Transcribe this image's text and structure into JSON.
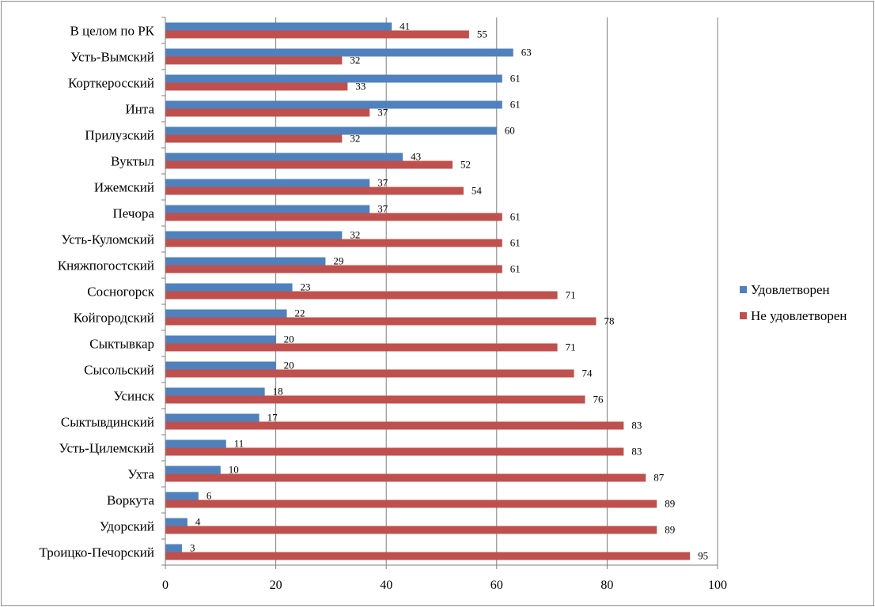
{
  "chart_data": {
    "type": "bar",
    "orientation": "horizontal",
    "categories": [
      "В целом по РК",
      "Усть-Вымский",
      "Корткеросский",
      "Инта",
      "Прилузский",
      "Вуктыл",
      "Ижемский",
      "Печора",
      "Усть-Куломский",
      "Княжпогостский",
      "Сосногорск",
      "Койгородский",
      "Сыктывкар",
      "Сысольский",
      "Усинск",
      "Сыктывдинский",
      "Усть-Цилемский",
      "Ухта",
      "Воркута",
      "Удорский",
      "Троицко-Печорский"
    ],
    "series": [
      {
        "name": "Удовлетворен",
        "color": "#4f81bd",
        "values": [
          41,
          63,
          61,
          61,
          60,
          43,
          37,
          37,
          32,
          29,
          23,
          22,
          20,
          20,
          18,
          17,
          11,
          10,
          6,
          4,
          3
        ]
      },
      {
        "name": "Не удовлетворен",
        "color": "#c0504d",
        "values": [
          55,
          32,
          33,
          37,
          32,
          52,
          54,
          61,
          61,
          61,
          71,
          78,
          71,
          74,
          76,
          83,
          83,
          87,
          89,
          89,
          95
        ]
      }
    ],
    "xlim": [
      0,
      100
    ],
    "xticks": [
      "0",
      "20",
      "40",
      "60",
      "80",
      "100"
    ],
    "grid": true,
    "legend_position": "right",
    "title": "",
    "xlabel": "",
    "ylabel": ""
  }
}
